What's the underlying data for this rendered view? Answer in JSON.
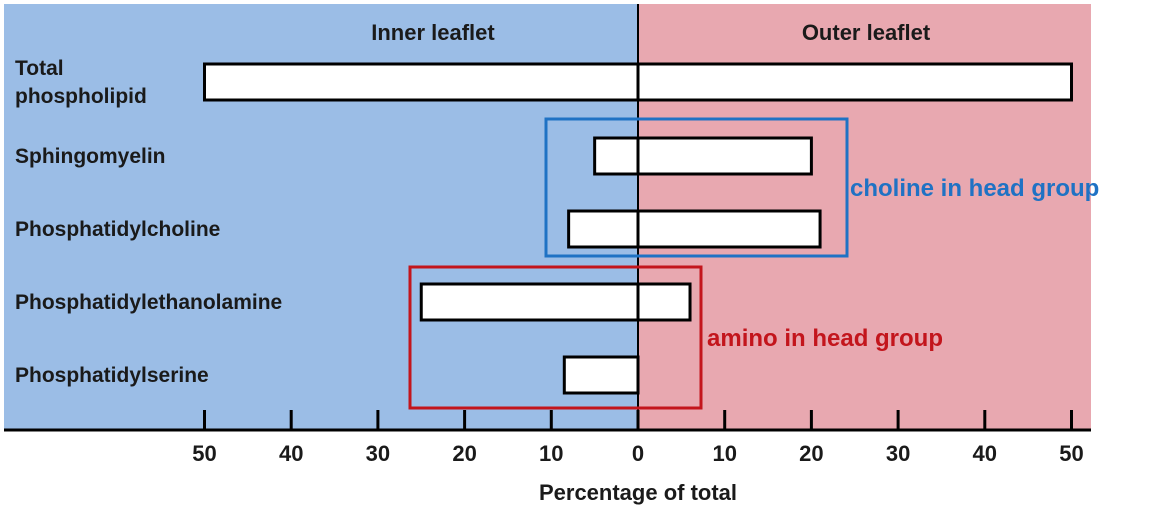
{
  "chart_data": {
    "type": "bar",
    "orientation": "horizontal",
    "title": "",
    "xlabel": "Percentage of total",
    "ylabel": "",
    "xlim": [
      -50,
      50
    ],
    "x_ticks": [
      50,
      40,
      30,
      20,
      10,
      0,
      10,
      20,
      30,
      40,
      50
    ],
    "panels": [
      "Inner leaflet",
      "Outer leaflet"
    ],
    "categories": [
      "Total\nphospholipid",
      "Sphingomyelin",
      "Phosphatidylcholine",
      "Phosphatidylethanolamine",
      "Phosphatidylserine"
    ],
    "series": [
      {
        "values": [
          50,
          5,
          8,
          25,
          8.5
        ]
      },
      {
        "values": [
          50,
          20,
          21,
          6,
          0
        ]
      }
    ],
    "annotations": [
      {
        "text": "choline in head group",
        "categories": [
          "Sphingomyelin",
          "Phosphatidylcholine"
        ],
        "color": "#1f72c4"
      },
      {
        "text": "amino in head group",
        "categories": [
          "Phosphatidylethanolamine",
          "Phosphatidylserine"
        ],
        "color": "#c3151c"
      }
    ],
    "colors": {
      "inner_bg": "#9bbde6",
      "outer_bg": "#e8a8b0",
      "bar_fill": "#ffffff",
      "bar_stroke": "#000000"
    },
    "grid": false,
    "legend": "none"
  }
}
